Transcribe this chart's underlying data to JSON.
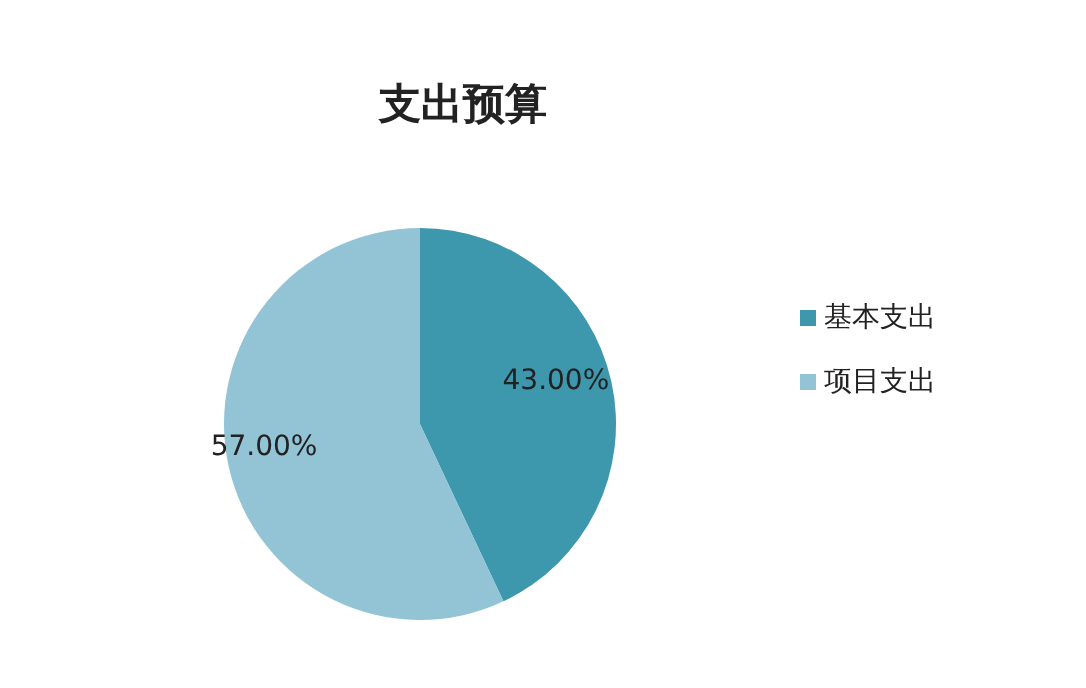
{
  "chart_data": {
    "type": "pie",
    "title": "支出预算",
    "categories": [
      "基本支出",
      "项目支出"
    ],
    "values": [
      43,
      57
    ],
    "value_labels": [
      "43.00%",
      "57.00%"
    ],
    "colors": [
      "#3d97ad",
      "#92c4d5"
    ],
    "legend": "right"
  }
}
